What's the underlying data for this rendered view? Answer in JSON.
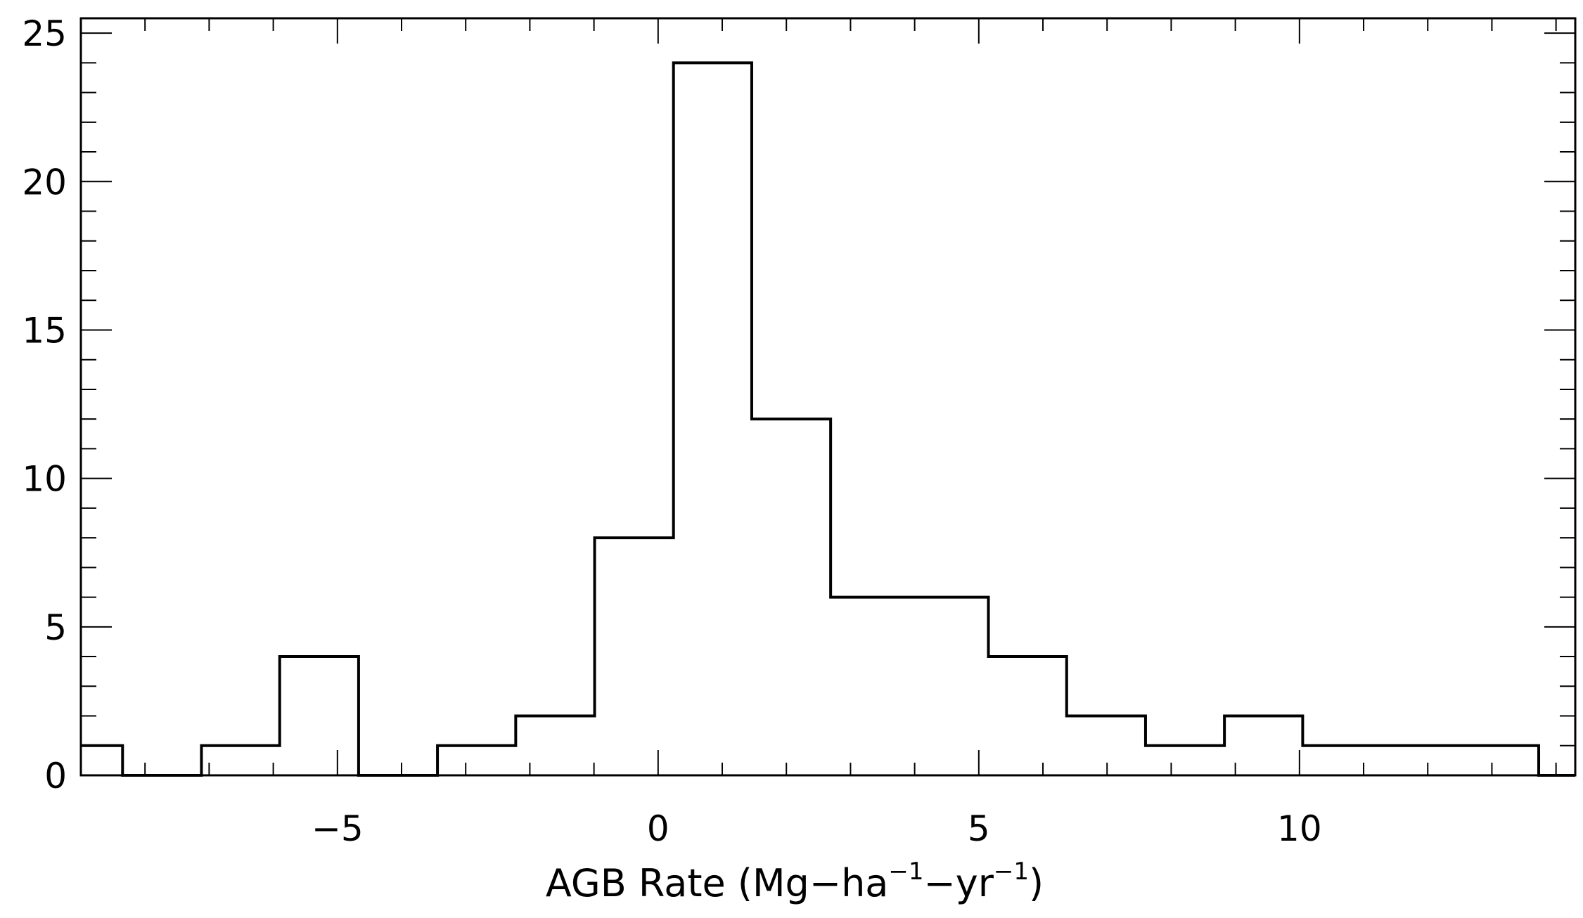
{
  "chart_data": {
    "type": "histogram",
    "xlabel": {
      "prefix": "AGB Rate (Mg−ha",
      "sup1": "−1",
      "middle": "−yr",
      "sup2": "−1",
      "suffix": ")"
    },
    "ylabel": "",
    "title": "",
    "xlim": [
      -9.0,
      14.3
    ],
    "ylim": [
      0,
      25.5
    ],
    "x_ticks": [
      -5,
      0,
      5,
      10
    ],
    "x_tick_labels": [
      "−5",
      "0",
      "5",
      "10"
    ],
    "x_minor_step": 1,
    "y_ticks": [
      0,
      5,
      10,
      15,
      20,
      25
    ],
    "y_tick_labels": [
      "0",
      "5",
      "10",
      "15",
      "20",
      "25"
    ],
    "y_minor_step": 1,
    "bin_edges": [
      -9.0,
      -8.35,
      -7.12,
      -5.9,
      -4.67,
      -3.44,
      -2.22,
      -0.99,
      0.24,
      1.46,
      2.69,
      3.92,
      5.15,
      6.37,
      7.6,
      8.83,
      10.05,
      11.28,
      12.51,
      13.73,
      14.3
    ],
    "counts": [
      1,
      0,
      1,
      4,
      0,
      1,
      2,
      8,
      24,
      12,
      6,
      6,
      4,
      2,
      1,
      2,
      1,
      1,
      1,
      0
    ],
    "line_color": "#000000",
    "background_color": "#ffffff",
    "grid": false,
    "legend": "none"
  }
}
